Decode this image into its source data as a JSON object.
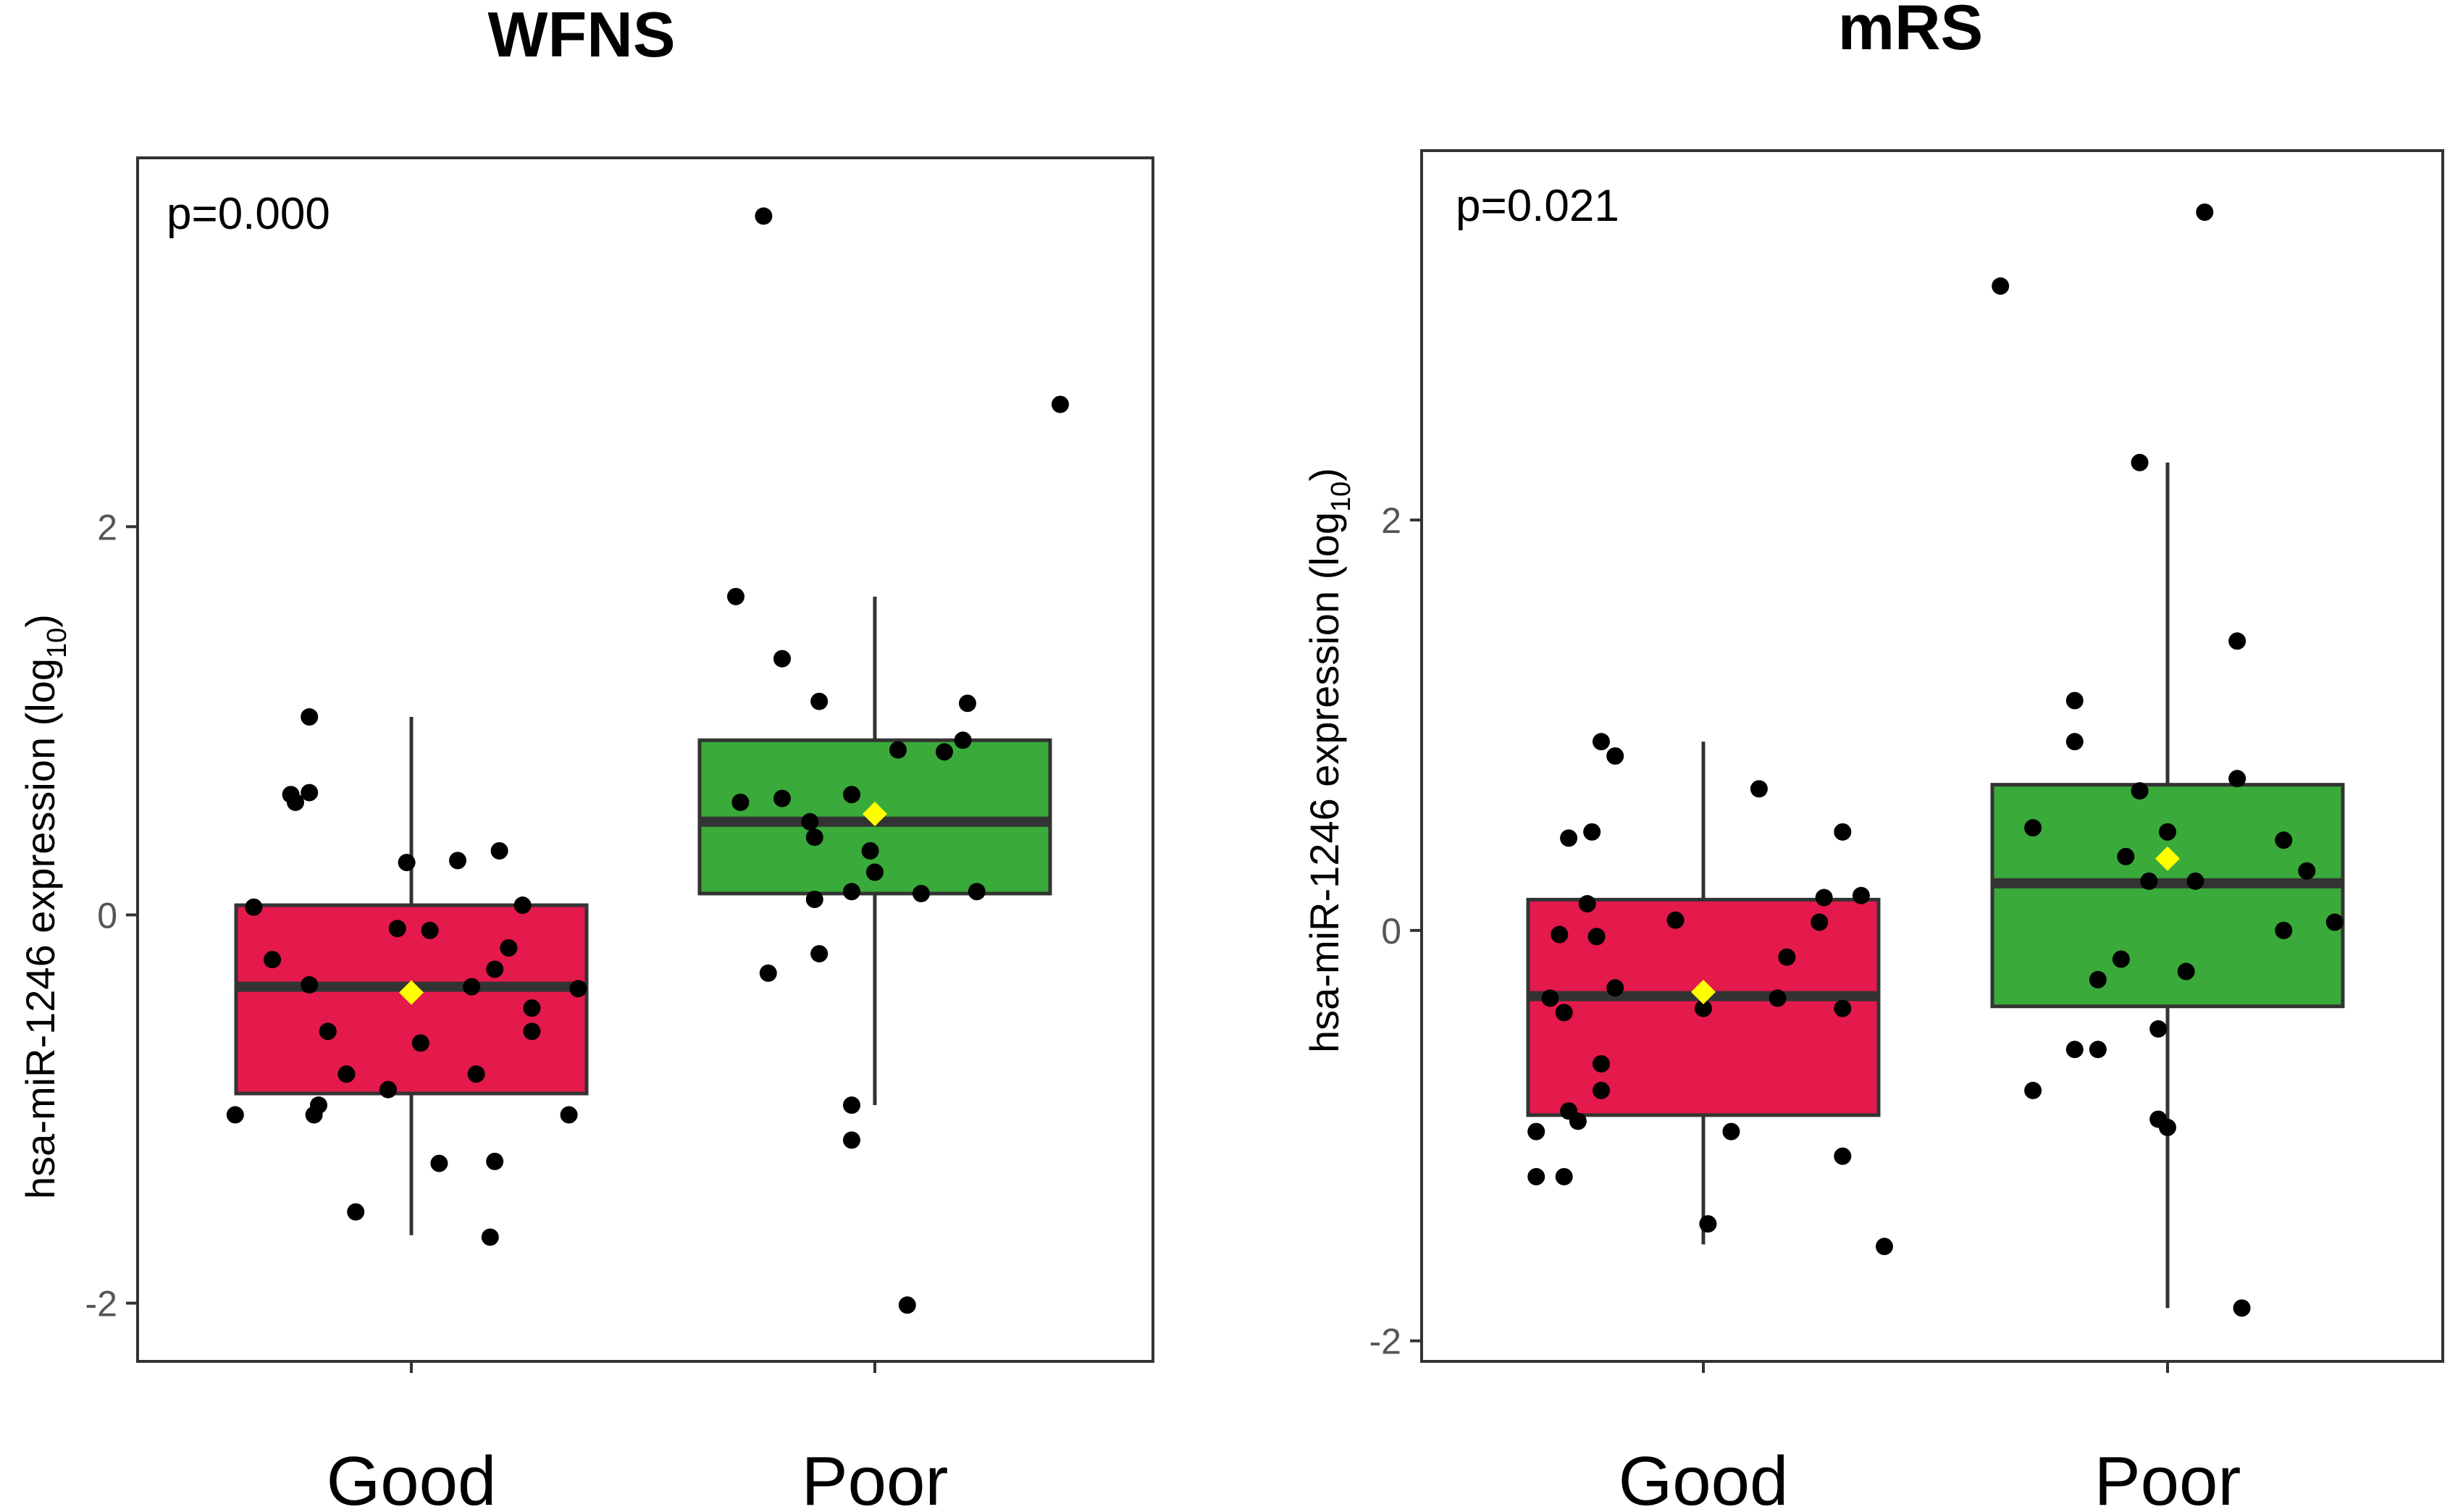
{
  "chart_data": [
    {
      "type": "box",
      "title": "WFNS",
      "annotation": "p=0.000",
      "ylabel": "hsa-miR-1246 expression (log",
      "ylabel_sub": "10",
      "ylabel_close": ")",
      "ylim": [
        -2.3,
        3.9
      ],
      "yticks": [
        -2,
        0,
        2
      ],
      "ytick_labels": [
        "-2",
        "0",
        "2"
      ],
      "categories": [
        "Good",
        "Poor"
      ],
      "box_colors": [
        "#e31a4b",
        "#3aaa3a"
      ],
      "mean_color": "#ffff00",
      "groups": [
        {
          "name": "Good",
          "whisker_low": -1.65,
          "q1": -0.92,
          "median": -0.37,
          "q3": 0.05,
          "whisker_high": 1.02,
          "mean": -0.4,
          "points": [
            {
              "jx": -0.38,
              "y": -1.03
            },
            {
              "jx": -0.34,
              "y": 0.04
            },
            {
              "jx": -0.3,
              "y": -0.23
            },
            {
              "jx": -0.26,
              "y": 0.62
            },
            {
              "jx": -0.25,
              "y": 0.58
            },
            {
              "jx": -0.22,
              "y": 0.63
            },
            {
              "jx": -0.22,
              "y": 1.02
            },
            {
              "jx": -0.22,
              "y": -0.36
            },
            {
              "jx": -0.21,
              "y": -1.03
            },
            {
              "jx": -0.2,
              "y": -0.98
            },
            {
              "jx": -0.18,
              "y": -0.6
            },
            {
              "jx": -0.14,
              "y": -0.82
            },
            {
              "jx": -0.12,
              "y": -1.53
            },
            {
              "jx": -0.05,
              "y": -0.9
            },
            {
              "jx": -0.03,
              "y": -0.07
            },
            {
              "jx": -0.01,
              "y": 0.27
            },
            {
              "jx": 0.02,
              "y": -0.66
            },
            {
              "jx": 0.04,
              "y": -0.08
            },
            {
              "jx": 0.06,
              "y": -1.28
            },
            {
              "jx": 0.1,
              "y": 0.28
            },
            {
              "jx": 0.13,
              "y": -0.37
            },
            {
              "jx": 0.14,
              "y": -0.82
            },
            {
              "jx": 0.17,
              "y": -1.66
            },
            {
              "jx": 0.18,
              "y": -1.27
            },
            {
              "jx": 0.18,
              "y": -0.28
            },
            {
              "jx": 0.19,
              "y": 0.33
            },
            {
              "jx": 0.21,
              "y": -0.17
            },
            {
              "jx": 0.24,
              "y": 0.05
            },
            {
              "jx": 0.26,
              "y": -0.48
            },
            {
              "jx": 0.26,
              "y": -0.6
            },
            {
              "jx": 0.34,
              "y": -1.03
            },
            {
              "jx": 0.36,
              "y": -0.38
            }
          ]
        },
        {
          "name": "Poor",
          "whisker_low": -0.98,
          "q1": 0.11,
          "median": 0.48,
          "q3": 0.9,
          "whisker_high": 1.64,
          "mean": 0.52,
          "points": [
            {
              "jx": -0.3,
              "y": 1.64
            },
            {
              "jx": -0.29,
              "y": 0.58
            },
            {
              "jx": -0.24,
              "y": 3.6
            },
            {
              "jx": -0.23,
              "y": -0.3
            },
            {
              "jx": -0.2,
              "y": 1.32
            },
            {
              "jx": -0.2,
              "y": 0.6
            },
            {
              "jx": -0.14,
              "y": 0.48
            },
            {
              "jx": -0.13,
              "y": 0.4
            },
            {
              "jx": -0.13,
              "y": 0.08
            },
            {
              "jx": -0.12,
              "y": -0.2
            },
            {
              "jx": -0.12,
              "y": 1.1
            },
            {
              "jx": -0.05,
              "y": 0.62
            },
            {
              "jx": -0.05,
              "y": 0.12
            },
            {
              "jx": -0.05,
              "y": -0.98
            },
            {
              "jx": -0.05,
              "y": -1.16
            },
            {
              "jx": -0.01,
              "y": 0.33
            },
            {
              "jx": 0.0,
              "y": 0.22
            },
            {
              "jx": 0.05,
              "y": 0.85
            },
            {
              "jx": 0.07,
              "y": -2.01
            },
            {
              "jx": 0.1,
              "y": 0.11
            },
            {
              "jx": 0.15,
              "y": 0.84
            },
            {
              "jx": 0.19,
              "y": 0.9
            },
            {
              "jx": 0.2,
              "y": 1.09
            },
            {
              "jx": 0.22,
              "y": 0.12
            },
            {
              "jx": 0.4,
              "y": 2.63
            }
          ]
        }
      ]
    },
    {
      "type": "box",
      "title": "mRS",
      "annotation": "p=0.021",
      "ylabel": "hsa-miR-1246 expression (log",
      "ylabel_sub": "10",
      "ylabel_close": ")",
      "ylim": [
        -2.1,
        3.8
      ],
      "yticks": [
        -2,
        0,
        2
      ],
      "ytick_labels": [
        "-2",
        "0",
        "2"
      ],
      "categories": [
        "Good",
        "Poor"
      ],
      "box_colors": [
        "#e31a4b",
        "#3aaa3a"
      ],
      "mean_color": "#ffff00",
      "groups": [
        {
          "name": "Good",
          "whisker_low": -1.53,
          "q1": -0.9,
          "median": -0.32,
          "q3": 0.15,
          "whisker_high": 0.92,
          "mean": -0.3,
          "points": [
            {
              "jx": -0.36,
              "y": -0.98
            },
            {
              "jx": -0.36,
              "y": -1.2
            },
            {
              "jx": -0.33,
              "y": -0.33
            },
            {
              "jx": -0.31,
              "y": -0.02
            },
            {
              "jx": -0.3,
              "y": -1.2
            },
            {
              "jx": -0.3,
              "y": -0.4
            },
            {
              "jx": -0.29,
              "y": 0.45
            },
            {
              "jx": -0.29,
              "y": -0.88
            },
            {
              "jx": -0.27,
              "y": -0.93
            },
            {
              "jx": -0.25,
              "y": 0.13
            },
            {
              "jx": -0.24,
              "y": 0.48
            },
            {
              "jx": -0.23,
              "y": -0.03
            },
            {
              "jx": -0.22,
              "y": 0.92
            },
            {
              "jx": -0.22,
              "y": -0.65
            },
            {
              "jx": -0.22,
              "y": -0.78
            },
            {
              "jx": -0.19,
              "y": 0.85
            },
            {
              "jx": -0.19,
              "y": -0.28
            },
            {
              "jx": -0.06,
              "y": 0.05
            },
            {
              "jx": 0.0,
              "y": -0.38
            },
            {
              "jx": 0.01,
              "y": -1.43
            },
            {
              "jx": 0.06,
              "y": -0.98
            },
            {
              "jx": 0.12,
              "y": 0.69
            },
            {
              "jx": 0.16,
              "y": -0.33
            },
            {
              "jx": 0.18,
              "y": -0.13
            },
            {
              "jx": 0.25,
              "y": 0.04
            },
            {
              "jx": 0.26,
              "y": 0.16
            },
            {
              "jx": 0.3,
              "y": -0.38
            },
            {
              "jx": 0.3,
              "y": 0.48
            },
            {
              "jx": 0.3,
              "y": -1.1
            },
            {
              "jx": 0.34,
              "y": 0.17
            },
            {
              "jx": 0.39,
              "y": -1.54
            }
          ]
        },
        {
          "name": "Poor",
          "whisker_low": -1.84,
          "q1": -0.37,
          "median": 0.23,
          "q3": 0.71,
          "whisker_high": 2.28,
          "mean": 0.35,
          "points": [
            {
              "jx": -0.36,
              "y": 3.14
            },
            {
              "jx": -0.29,
              "y": -0.78
            },
            {
              "jx": -0.29,
              "y": 0.5
            },
            {
              "jx": -0.2,
              "y": -0.58
            },
            {
              "jx": -0.2,
              "y": 1.12
            },
            {
              "jx": -0.2,
              "y": 0.92
            },
            {
              "jx": -0.15,
              "y": -0.24
            },
            {
              "jx": -0.15,
              "y": -0.58
            },
            {
              "jx": -0.1,
              "y": -0.14
            },
            {
              "jx": -0.09,
              "y": 0.36
            },
            {
              "jx": -0.06,
              "y": 2.28
            },
            {
              "jx": -0.06,
              "y": 0.68
            },
            {
              "jx": -0.04,
              "y": 0.24
            },
            {
              "jx": -0.02,
              "y": -0.92
            },
            {
              "jx": -0.02,
              "y": -0.48
            },
            {
              "jx": 0.0,
              "y": -0.96
            },
            {
              "jx": 0.0,
              "y": 0.48
            },
            {
              "jx": 0.04,
              "y": -0.2
            },
            {
              "jx": 0.06,
              "y": 0.24
            },
            {
              "jx": 0.08,
              "y": 3.5
            },
            {
              "jx": 0.15,
              "y": 0.74
            },
            {
              "jx": 0.15,
              "y": 1.41
            },
            {
              "jx": 0.25,
              "y": 0.44
            },
            {
              "jx": 0.25,
              "y": 0.0
            },
            {
              "jx": 0.3,
              "y": 0.29
            },
            {
              "jx": 0.36,
              "y": 0.04
            },
            {
              "jx": 0.16,
              "y": -1.84
            }
          ]
        }
      ]
    }
  ]
}
